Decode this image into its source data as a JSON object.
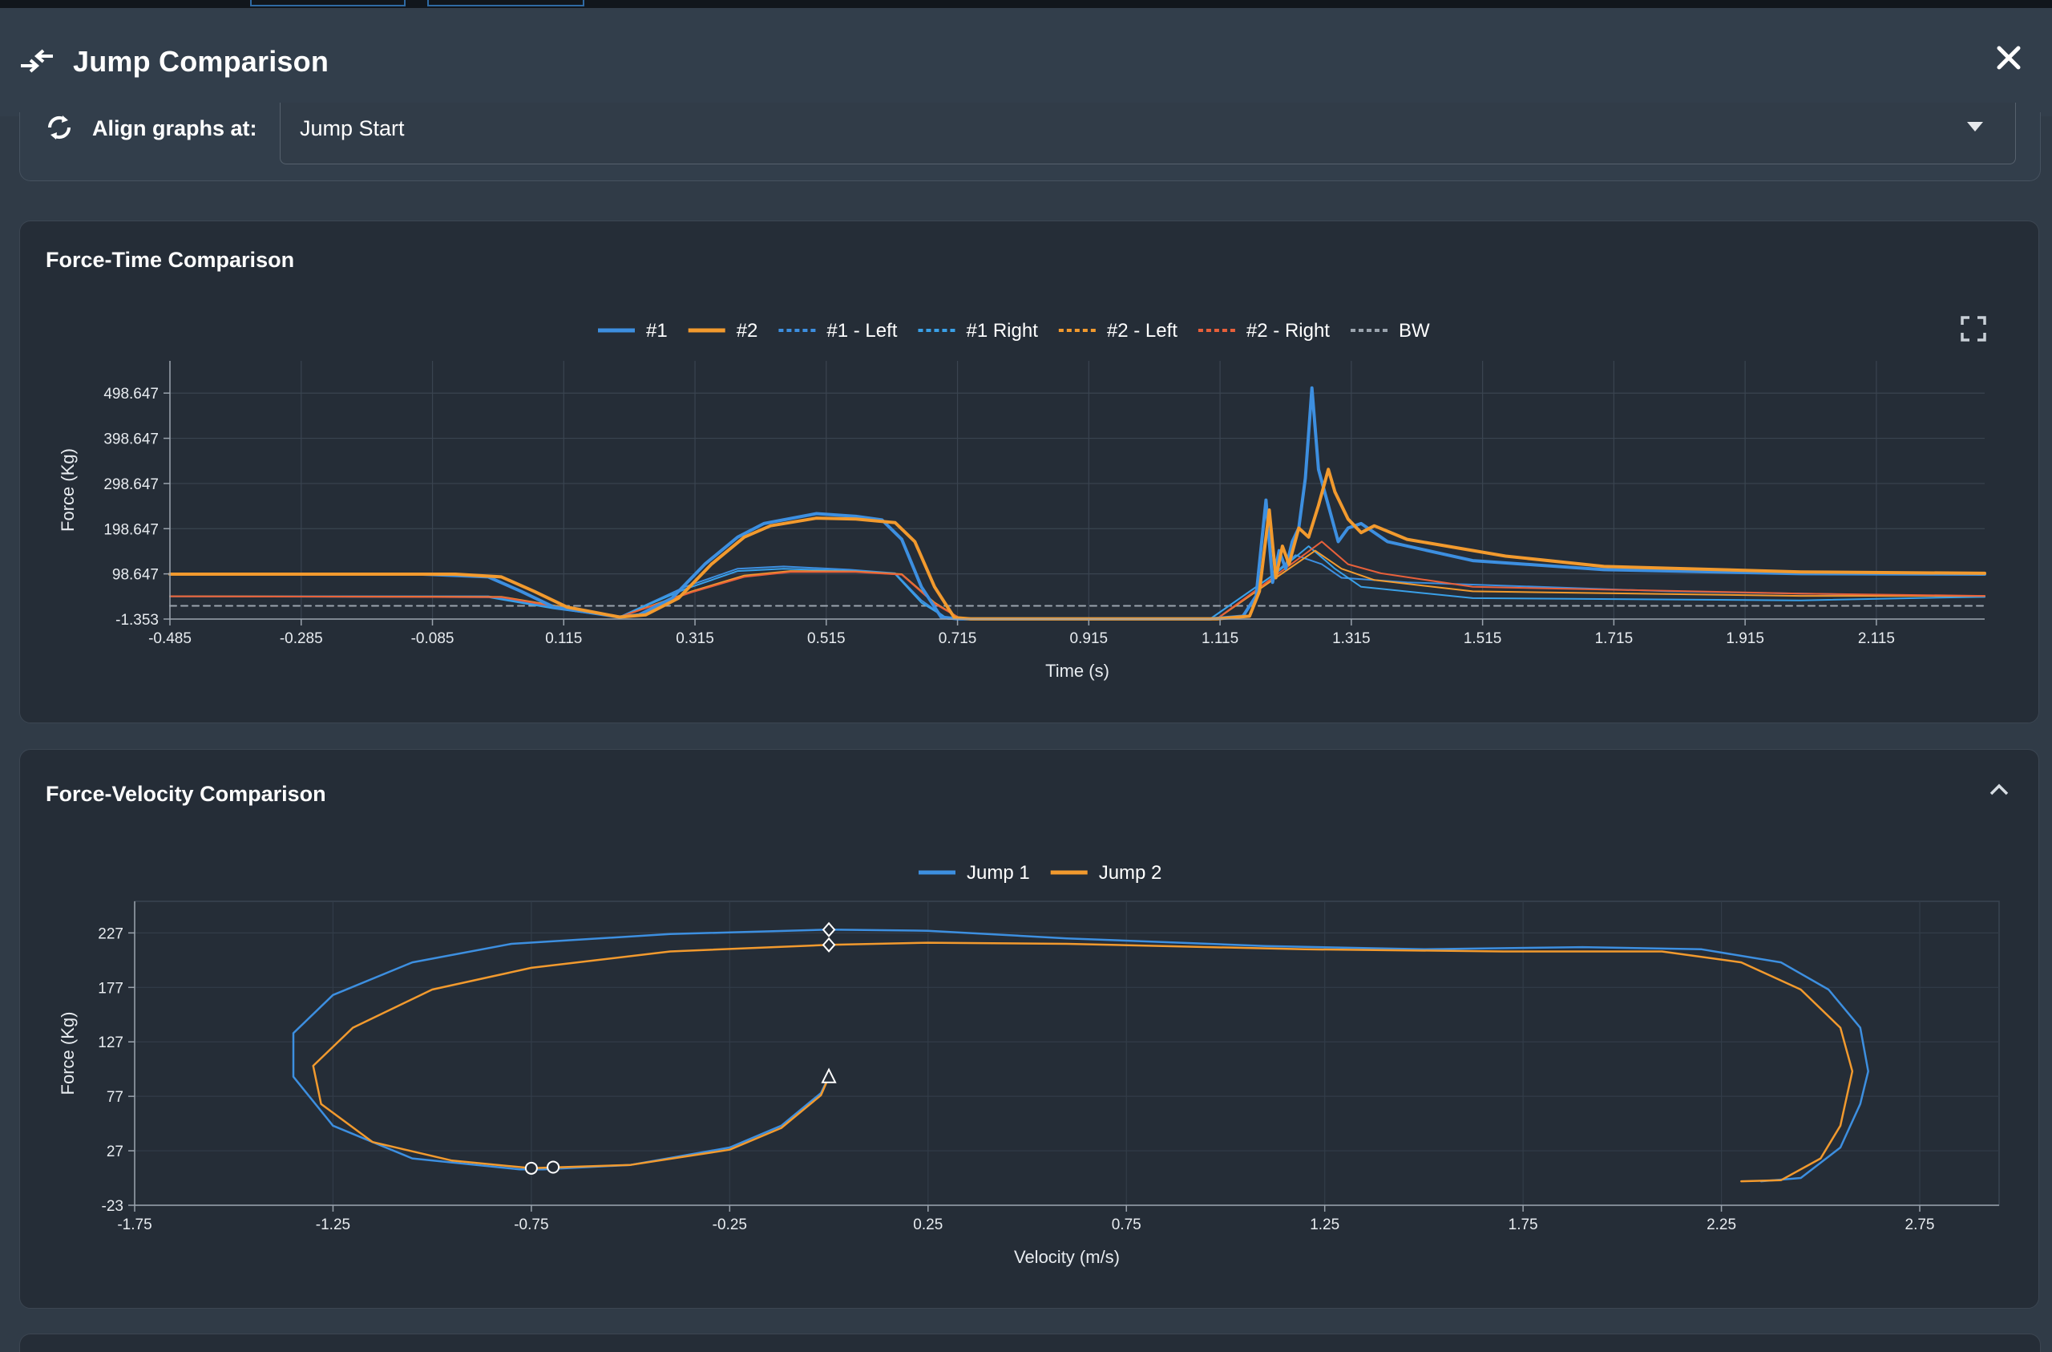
{
  "modal": {
    "title": "Jump Comparison"
  },
  "align": {
    "label": "Align graphs at:",
    "selected": "Jump Start"
  },
  "force_time": {
    "title": "Force-Time Comparison",
    "legend": [
      {
        "label": "#1",
        "color": "#3d8fe0",
        "dash": "solid"
      },
      {
        "label": "#2",
        "color": "#f29a2e",
        "dash": "solid"
      },
      {
        "label": "#1 - Left",
        "color": "#3d8fe0",
        "dash": "dotted"
      },
      {
        "label": "#1 Right",
        "color": "#3aa0e8",
        "dash": "dotted"
      },
      {
        "label": "#2 - Left",
        "color": "#f29a2e",
        "dash": "dotted"
      },
      {
        "label": "#2 - Right",
        "color": "#e8603a",
        "dash": "dotted"
      },
      {
        "label": "BW",
        "color": "#9aa3ad",
        "dash": "dotted"
      }
    ]
  },
  "force_velocity": {
    "title": "Force-Velocity Comparison",
    "legend": [
      {
        "label": "Jump 1",
        "color": "#3d8fe0"
      },
      {
        "label": "Jump 2",
        "color": "#f29a2e"
      }
    ]
  },
  "chart_data": [
    {
      "type": "line",
      "title": "Force-Time Comparison",
      "xlabel": "Time (s)",
      "ylabel": "Force (Kg)",
      "xlim": [
        -0.485,
        2.28
      ],
      "ylim": [
        -1.353,
        570
      ],
      "xticks": [
        "-0.485",
        "-0.285",
        "-0.085",
        "0.115",
        "0.315",
        "0.515",
        "0.715",
        "0.915",
        "1.115",
        "1.315",
        "1.515",
        "1.715",
        "1.915",
        "2.115"
      ],
      "yticks": [
        "-1.353",
        "98.647",
        "198.647",
        "298.647",
        "398.647",
        "498.647"
      ],
      "legend_position": "top-center",
      "grid": true,
      "series": [
        {
          "name": "#1",
          "color": "#3d8fe0",
          "width": 4,
          "points": [
            [
              -0.485,
              98
            ],
            [
              -0.1,
              98
            ],
            [
              0.0,
              92
            ],
            [
              0.05,
              60
            ],
            [
              0.1,
              25
            ],
            [
              0.2,
              3
            ],
            [
              0.23,
              8
            ],
            [
              0.28,
              45
            ],
            [
              0.33,
              120
            ],
            [
              0.38,
              180
            ],
            [
              0.42,
              210
            ],
            [
              0.5,
              232
            ],
            [
              0.56,
              226
            ],
            [
              0.6,
              218
            ],
            [
              0.63,
              175
            ],
            [
              0.66,
              70
            ],
            [
              0.69,
              3
            ],
            [
              0.715,
              -1
            ],
            [
              1.1,
              -1
            ],
            [
              1.15,
              5
            ],
            [
              1.17,
              50
            ],
            [
              1.185,
              262
            ],
            [
              1.195,
              80
            ],
            [
              1.205,
              150
            ],
            [
              1.215,
              110
            ],
            [
              1.225,
              170
            ],
            [
              1.235,
              200
            ],
            [
              1.245,
              310
            ],
            [
              1.255,
              510
            ],
            [
              1.265,
              330
            ],
            [
              1.28,
              250
            ],
            [
              1.295,
              170
            ],
            [
              1.31,
              200
            ],
            [
              1.33,
              210
            ],
            [
              1.37,
              170
            ],
            [
              1.5,
              128
            ],
            [
              1.7,
              108
            ],
            [
              2.0,
              99
            ],
            [
              2.28,
              98
            ]
          ]
        },
        {
          "name": "#2",
          "color": "#f29a2e",
          "width": 4,
          "points": [
            [
              -0.485,
              98
            ],
            [
              -0.05,
              98
            ],
            [
              0.02,
              92
            ],
            [
              0.07,
              60
            ],
            [
              0.12,
              25
            ],
            [
              0.2,
              3
            ],
            [
              0.24,
              8
            ],
            [
              0.29,
              45
            ],
            [
              0.34,
              120
            ],
            [
              0.39,
              180
            ],
            [
              0.43,
              205
            ],
            [
              0.5,
              222
            ],
            [
              0.56,
              220
            ],
            [
              0.62,
              212
            ],
            [
              0.65,
              170
            ],
            [
              0.68,
              70
            ],
            [
              0.71,
              2
            ],
            [
              0.735,
              -1
            ],
            [
              1.11,
              -1
            ],
            [
              1.16,
              5
            ],
            [
              1.175,
              60
            ],
            [
              1.19,
              240
            ],
            [
              1.2,
              90
            ],
            [
              1.21,
              160
            ],
            [
              1.22,
              120
            ],
            [
              1.235,
              200
            ],
            [
              1.25,
              180
            ],
            [
              1.265,
              250
            ],
            [
              1.28,
              330
            ],
            [
              1.29,
              280
            ],
            [
              1.31,
              220
            ],
            [
              1.33,
              190
            ],
            [
              1.35,
              205
            ],
            [
              1.4,
              175
            ],
            [
              1.55,
              138
            ],
            [
              1.7,
              115
            ],
            [
              2.0,
              103
            ],
            [
              2.28,
              100
            ]
          ]
        },
        {
          "name": "#1 - Left",
          "color": "#3d8fe0",
          "width": 2,
          "points": [
            [
              -0.485,
              49
            ],
            [
              0.0,
              49
            ],
            [
              0.1,
              25
            ],
            [
              0.2,
              3
            ],
            [
              0.3,
              70
            ],
            [
              0.38,
              110
            ],
            [
              0.45,
              115
            ],
            [
              0.55,
              108
            ],
            [
              0.62,
              100
            ],
            [
              0.66,
              40
            ],
            [
              0.7,
              -1
            ],
            [
              1.1,
              -1
            ],
            [
              1.19,
              90
            ],
            [
              1.23,
              140
            ],
            [
              1.27,
              120
            ],
            [
              1.3,
              90
            ],
            [
              1.4,
              80
            ],
            [
              1.8,
              60
            ],
            [
              2.28,
              48
            ]
          ]
        },
        {
          "name": "#1 Right",
          "color": "#3aa0e8",
          "width": 2,
          "points": [
            [
              -0.485,
              49
            ],
            [
              0.0,
              47
            ],
            [
              0.1,
              22
            ],
            [
              0.2,
              3
            ],
            [
              0.3,
              65
            ],
            [
              0.38,
              105
            ],
            [
              0.45,
              110
            ],
            [
              0.55,
              105
            ],
            [
              0.62,
              98
            ],
            [
              0.66,
              35
            ],
            [
              0.7,
              -1
            ],
            [
              1.1,
              -1
            ],
            [
              1.2,
              100
            ],
            [
              1.25,
              160
            ],
            [
              1.29,
              110
            ],
            [
              1.33,
              70
            ],
            [
              1.5,
              45
            ],
            [
              2.0,
              40
            ],
            [
              2.28,
              48
            ]
          ]
        },
        {
          "name": "#2 - Left",
          "color": "#f29a2e",
          "width": 2,
          "points": [
            [
              -0.485,
              49
            ],
            [
              0.02,
              48
            ],
            [
              0.12,
              24
            ],
            [
              0.2,
              3
            ],
            [
              0.31,
              60
            ],
            [
              0.39,
              95
            ],
            [
              0.46,
              105
            ],
            [
              0.56,
              104
            ],
            [
              0.63,
              98
            ],
            [
              0.68,
              35
            ],
            [
              0.72,
              -1
            ],
            [
              1.11,
              -1
            ],
            [
              1.2,
              90
            ],
            [
              1.26,
              150
            ],
            [
              1.3,
              110
            ],
            [
              1.35,
              85
            ],
            [
              1.5,
              60
            ],
            [
              2.0,
              50
            ],
            [
              2.28,
              50
            ]
          ]
        },
        {
          "name": "#2 - Right",
          "color": "#e8603a",
          "width": 2,
          "points": [
            [
              -0.485,
              49
            ],
            [
              0.02,
              47
            ],
            [
              0.12,
              22
            ],
            [
              0.2,
              3
            ],
            [
              0.31,
              58
            ],
            [
              0.39,
              92
            ],
            [
              0.46,
              103
            ],
            [
              0.56,
              103
            ],
            [
              0.63,
              97
            ],
            [
              0.68,
              33
            ],
            [
              0.72,
              -1
            ],
            [
              1.11,
              -1
            ],
            [
              1.2,
              95
            ],
            [
              1.27,
              170
            ],
            [
              1.31,
              120
            ],
            [
              1.36,
              100
            ],
            [
              1.5,
              70
            ],
            [
              2.0,
              55
            ],
            [
              2.28,
              50
            ]
          ]
        },
        {
          "name": "BW",
          "color": "#9aa3ad",
          "width": 2,
          "dash": true,
          "points": [
            [
              -0.485,
              28
            ],
            [
              2.28,
              28
            ]
          ]
        }
      ]
    },
    {
      "type": "line",
      "title": "Force-Velocity Comparison",
      "xlabel": "Velocity (m/s)",
      "ylabel": "Force (Kg)",
      "xlim": [
        -1.75,
        2.95
      ],
      "ylim": [
        -23,
        256
      ],
      "xticks": [
        "-1.75",
        "-1.25",
        "-0.75",
        "-0.25",
        "0.25",
        "0.75",
        "1.25",
        "1.75",
        "2.25",
        "2.75"
      ],
      "yticks": [
        "-23",
        "27",
        "77",
        "127",
        "177",
        "227"
      ],
      "legend_position": "top-center",
      "grid": true,
      "series": [
        {
          "name": "Jump 1",
          "color": "#3d8fe0",
          "points": [
            [
              2.35,
              -1
            ],
            [
              2.45,
              2
            ],
            [
              2.55,
              30
            ],
            [
              2.6,
              70
            ],
            [
              2.62,
              100
            ],
            [
              2.6,
              140
            ],
            [
              2.52,
              175
            ],
            [
              2.4,
              200
            ],
            [
              2.2,
              212
            ],
            [
              1.9,
              214
            ],
            [
              1.5,
              212
            ],
            [
              1.1,
              215
            ],
            [
              0.6,
              222
            ],
            [
              0.25,
              229
            ],
            [
              0.0,
              230
            ],
            [
              -0.4,
              226
            ],
            [
              -0.8,
              217
            ],
            [
              -1.05,
              200
            ],
            [
              -1.25,
              170
            ],
            [
              -1.35,
              135
            ],
            [
              -1.35,
              95
            ],
            [
              -1.25,
              50
            ],
            [
              -1.05,
              20
            ],
            [
              -0.78,
              10
            ],
            [
              -0.72,
              10
            ],
            [
              -0.5,
              14
            ],
            [
              -0.25,
              30
            ],
            [
              -0.12,
              50
            ],
            [
              -0.02,
              80
            ],
            [
              0.0,
              95
            ]
          ]
        },
        {
          "name": "Jump 2",
          "color": "#f29a2e",
          "points": [
            [
              2.3,
              -1
            ],
            [
              2.4,
              0
            ],
            [
              2.5,
              20
            ],
            [
              2.55,
              50
            ],
            [
              2.58,
              100
            ],
            [
              2.55,
              140
            ],
            [
              2.45,
              175
            ],
            [
              2.3,
              200
            ],
            [
              2.1,
              210
            ],
            [
              1.7,
              210
            ],
            [
              1.2,
              212
            ],
            [
              0.6,
              217
            ],
            [
              0.25,
              218
            ],
            [
              0.0,
              216
            ],
            [
              -0.4,
              210
            ],
            [
              -0.75,
              195
            ],
            [
              -1.0,
              175
            ],
            [
              -1.2,
              140
            ],
            [
              -1.3,
              105
            ],
            [
              -1.28,
              70
            ],
            [
              -1.15,
              35
            ],
            [
              -0.95,
              18
            ],
            [
              -0.75,
              11
            ],
            [
              -0.5,
              14
            ],
            [
              -0.25,
              28
            ],
            [
              -0.12,
              48
            ],
            [
              -0.02,
              78
            ],
            [
              0.0,
              95
            ]
          ]
        }
      ],
      "markers": [
        {
          "shape": "diamond",
          "x": 0.0,
          "y": 230
        },
        {
          "shape": "diamond",
          "x": 0.0,
          "y": 216
        },
        {
          "shape": "triangle",
          "x": 0.0,
          "y": 95
        },
        {
          "shape": "circle",
          "x": -0.75,
          "y": 11
        },
        {
          "shape": "circle",
          "x": -0.695,
          "y": 12
        }
      ]
    }
  ]
}
